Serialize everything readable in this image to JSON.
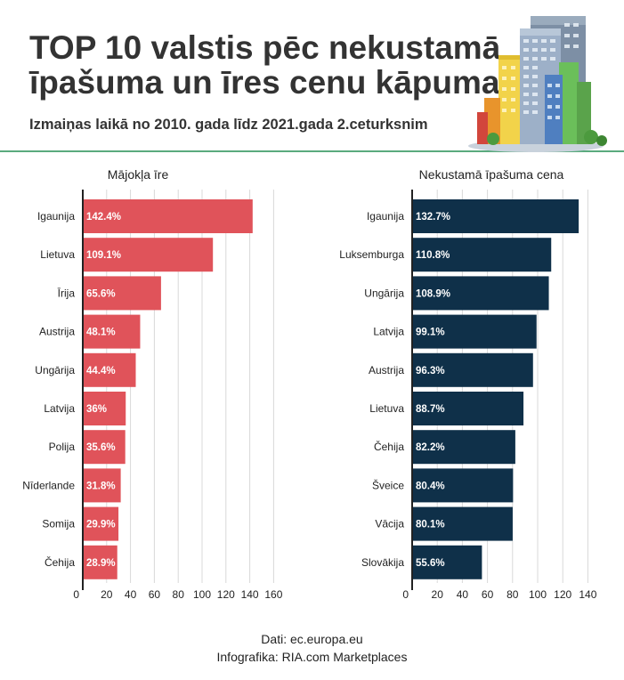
{
  "header": {
    "title": "TOP 10 valstis pēc nekustamā īpašuma un īres cenu kāpuma",
    "subtitle": "Izmaiņas laikā no 2010. gada līdz 2021.gada 2.ceturksnim"
  },
  "footer": {
    "source": "Dati: ec.europa.eu",
    "credit": "Infografika: RIA.com Marketplaces"
  },
  "colors": {
    "rent_bar": "#e0535a",
    "price_bar": "#0f3049",
    "header_rule": "#5aaa7e"
  },
  "illustration": "apartment-building-icon",
  "chart_data": [
    {
      "type": "bar",
      "orientation": "horizontal",
      "title": "Mājokļa īre",
      "categories": [
        "Igaunija",
        "Lietuva",
        "Īrija",
        "Austrija",
        "Ungārija",
        "Latvija",
        "Polija",
        "Nīderlande",
        "Somija",
        "Čehija"
      ],
      "values": [
        142.4,
        109.1,
        65.6,
        48.1,
        44.4,
        36,
        35.6,
        31.8,
        29.9,
        28.9
      ],
      "value_labels": [
        "142.4%",
        "109.1%",
        "65.6%",
        "48.1%",
        "44.4%",
        "36%",
        "35.6%",
        "31.8%",
        "29.9%",
        "28.9%"
      ],
      "xlim": [
        0,
        160
      ],
      "xticks": [
        0,
        20,
        40,
        60,
        80,
        100,
        120,
        140,
        160
      ],
      "grid": true
    },
    {
      "type": "bar",
      "orientation": "horizontal",
      "title": "Nekustamā īpašuma cena",
      "categories": [
        "Igaunija",
        "Luksemburga",
        "Ungārija",
        "Latvija",
        "Austrija",
        "Lietuva",
        "Čehija",
        "Šveice",
        "Vācija",
        "Slovākija"
      ],
      "values": [
        132.7,
        110.8,
        108.9,
        99.1,
        96.3,
        88.7,
        82.2,
        80.4,
        80.1,
        55.6
      ],
      "value_labels": [
        "132.7%",
        "110.8%",
        "108.9%",
        "99.1%",
        "96.3%",
        "88.7%",
        "82.2%",
        "80.4%",
        "80.1%",
        "55.6%"
      ],
      "xlim": [
        0,
        150
      ],
      "xticks": [
        0,
        20,
        40,
        60,
        80,
        100,
        120,
        140
      ],
      "grid": true
    }
  ]
}
